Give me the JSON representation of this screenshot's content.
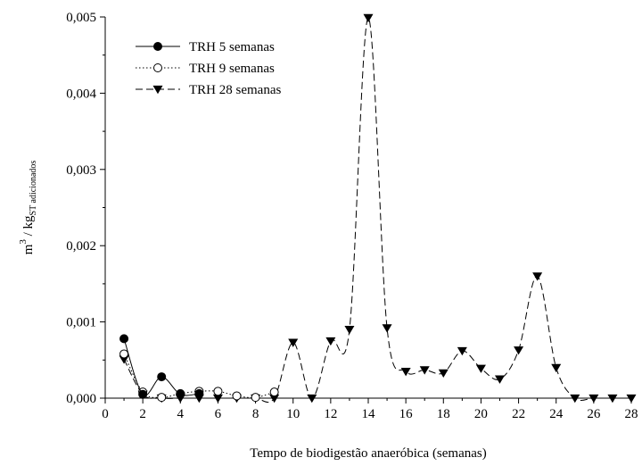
{
  "chart_data": {
    "type": "line",
    "title": "",
    "xlabel": "Tempo de biodigestão anaeróbica (semanas)",
    "ylabel": {
      "main": "m",
      "sup": "3",
      "mid": " / kg",
      "sub": "ST adicionados"
    },
    "xlim": [
      0,
      28
    ],
    "ylim": [
      0,
      0.005
    ],
    "xticks": [
      0,
      2,
      4,
      6,
      8,
      10,
      12,
      14,
      16,
      18,
      20,
      22,
      24,
      26,
      28
    ],
    "yticks": [
      0,
      0.001,
      0.002,
      0.003,
      0.004,
      0.005
    ],
    "xtick_labels": [
      "0",
      "2",
      "4",
      "6",
      "8",
      "10",
      "12",
      "14",
      "16",
      "18",
      "20",
      "22",
      "24",
      "26",
      "28"
    ],
    "ytick_labels": [
      "0,000",
      "0,001",
      "0,002",
      "0,003",
      "0,004",
      "0,005"
    ],
    "grid": false,
    "legend_position": "top-left",
    "series": [
      {
        "name": "TRH 5 semanas",
        "marker": "filled-circle",
        "line": "solid",
        "x": [
          1,
          2,
          3,
          4,
          5
        ],
        "y": [
          0.00078,
          5e-05,
          0.00028,
          5e-05,
          6e-05
        ]
      },
      {
        "name": "TRH 9 semanas",
        "marker": "open-circle",
        "line": "dotted",
        "x": [
          1,
          2,
          3,
          4,
          5,
          6,
          7,
          8,
          9
        ],
        "y": [
          0.00058,
          8e-05,
          1e-05,
          6e-05,
          9e-05,
          9e-05,
          3e-05,
          1e-05,
          8e-05
        ]
      },
      {
        "name": "TRH 28 semanas",
        "marker": "filled-triangle-down",
        "line": "dashed",
        "x": [
          1,
          2,
          3,
          4,
          5,
          6,
          7,
          8,
          9,
          10,
          11,
          12,
          13,
          14,
          15,
          16,
          17,
          18,
          19,
          20,
          21,
          22,
          23,
          24,
          25,
          26,
          27,
          28
        ],
        "y": [
          0.00051,
          5e-05,
          0.0,
          0.0,
          0.0,
          0.0,
          0.0,
          0.0,
          0.0,
          0.00073,
          0.0,
          0.00075,
          0.0009,
          0.00499,
          0.00092,
          0.00035,
          0.00037,
          0.00033,
          0.00062,
          0.00039,
          0.00025,
          0.00063,
          0.0016,
          0.0004,
          0.0,
          0.0,
          0.0,
          0.0
        ]
      }
    ]
  }
}
